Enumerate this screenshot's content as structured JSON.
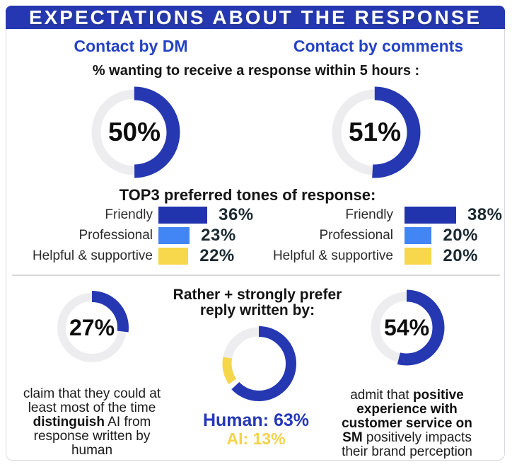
{
  "banner": {
    "title": "EXPECTATIONS ABOUT THE RESPONSE"
  },
  "columns": {
    "dm": "Contact by DM",
    "comments": "Contact by comments"
  },
  "within5h": {
    "subtitle": "% wanting to receive a response within 5 hours :",
    "dm": {
      "label": "50%",
      "value": 50
    },
    "comments": {
      "label": "51%",
      "value": 51
    }
  },
  "tones": {
    "title": "TOP3 preferred tones of response:",
    "dm": {
      "rows": [
        {
          "label": "Friendly",
          "pct": "36%",
          "value": 36,
          "color": "#2233ae"
        },
        {
          "label": "Professional",
          "pct": "23%",
          "value": 23,
          "color": "#4285f4"
        },
        {
          "label": "Helpful & supportive",
          "pct": "22%",
          "value": 22,
          "color": "#f7d74b"
        }
      ]
    },
    "comments": {
      "rows": [
        {
          "label": "Friendly",
          "pct": "38%",
          "value": 38,
          "color": "#2233ae"
        },
        {
          "label": "Professional",
          "pct": "20%",
          "value": 20,
          "color": "#4285f4"
        },
        {
          "label": "Helpful & supportive",
          "pct": "20%",
          "value": 20,
          "color": "#f7d74b"
        }
      ]
    }
  },
  "distinguish": {
    "pct": "27%",
    "value": 27,
    "text_before": "claim that they could at least most of the time ",
    "text_bold": "distinguish",
    "text_after": " AI from response written by human"
  },
  "prefer": {
    "title": "Rather + strongly prefer reply written by:",
    "human_label": "Human: 63%",
    "ai_label": "AI: 13%",
    "segments": {
      "human": {
        "value": 63,
        "start": 0,
        "color": "#2538b2"
      },
      "ai": {
        "value": 12.5,
        "start": 65.5,
        "color": "#f6d74b"
      },
      "rest": {
        "value": 22,
        "start": 78,
        "color": "#ededef"
      }
    }
  },
  "experience": {
    "pct": "54%",
    "value": 54,
    "text_before": "admit that ",
    "text_bold": "positive experience with customer service on SM",
    "text_after": " positively impacts their brand perception"
  },
  "colors": {
    "primary_blue": "#2538b2",
    "heading_blue": "#2442c4",
    "light_blue": "#4285f4",
    "yellow": "#f6d74b",
    "track": "#ededef",
    "value_dark": "#1b2a32"
  },
  "chart_data": [
    {
      "type": "pie",
      "subtype": "donut",
      "title": "% wanting to receive a response within 5 hours — Contact by DM",
      "center_label": "50%",
      "values": [
        {
          "label": "within 5 hours",
          "value": 50
        },
        {
          "label": "other",
          "value": 50
        }
      ]
    },
    {
      "type": "pie",
      "subtype": "donut",
      "title": "% wanting to receive a response within 5 hours — Contact by comments",
      "center_label": "51%",
      "values": [
        {
          "label": "within 5 hours",
          "value": 51
        },
        {
          "label": "other",
          "value": 49
        }
      ]
    },
    {
      "type": "bar",
      "title": "TOP3 preferred tones of response",
      "categories": [
        "Friendly",
        "Professional",
        "Helpful & supportive"
      ],
      "series": [
        {
          "name": "Contact by DM",
          "values": [
            36,
            23,
            22
          ]
        },
        {
          "name": "Contact by comments",
          "values": [
            38,
            20,
            20
          ]
        }
      ],
      "unit": "%",
      "orientation": "horizontal"
    },
    {
      "type": "pie",
      "subtype": "donut",
      "title": "claim that they could at least most of the time distinguish AI from response written by human",
      "center_label": "27%",
      "values": [
        {
          "label": "can distinguish",
          "value": 27
        },
        {
          "label": "other",
          "value": 73
        }
      ]
    },
    {
      "type": "pie",
      "subtype": "donut",
      "title": "Rather + strongly prefer reply written by",
      "values": [
        {
          "label": "Human",
          "value": 63
        },
        {
          "label": "AI",
          "value": 13
        },
        {
          "label": "other",
          "value": 24
        }
      ]
    },
    {
      "type": "pie",
      "subtype": "donut",
      "title": "admit that positive experience with customer service on SM positively impacts their brand perception",
      "center_label": "54%",
      "values": [
        {
          "label": "agree",
          "value": 54
        },
        {
          "label": "other",
          "value": 46
        }
      ]
    }
  ]
}
